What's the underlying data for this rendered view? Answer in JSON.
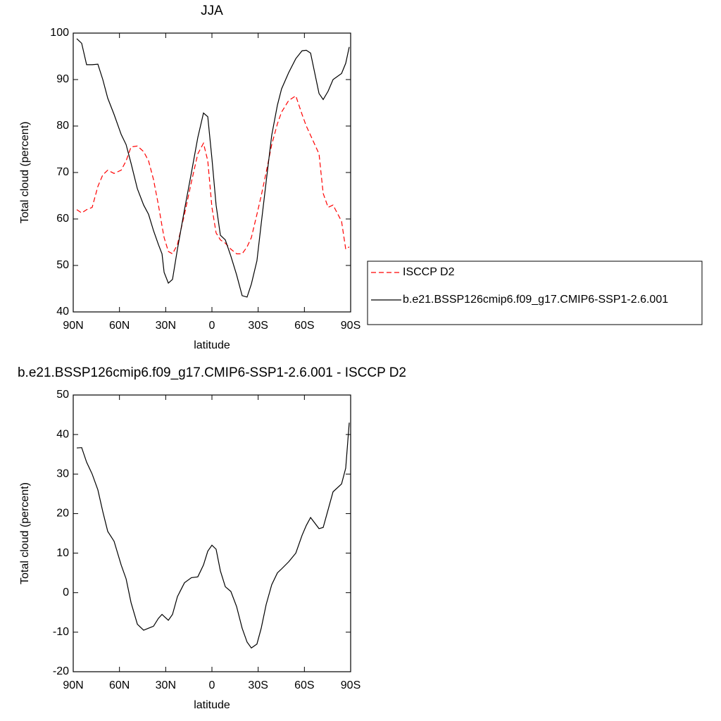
{
  "chart_data": [
    {
      "type": "line",
      "title": "JJA",
      "xlabel": "latitude",
      "ylabel": "Total cloud (percent)",
      "x": [
        87.7,
        84.5,
        81.3,
        77.7,
        74,
        70.8,
        67.6,
        63.5,
        58.9,
        55.7,
        52.5,
        48.4,
        44.3,
        41.1,
        37.9,
        34.7,
        32.4,
        31,
        28.3,
        25.6,
        22.4,
        17.8,
        13.3,
        9.2,
        5.5,
        2.7,
        0,
        -2.7,
        -5.5,
        -8.7,
        -12.3,
        -16,
        -19.6,
        -22.8,
        -25.6,
        -29.2,
        -32,
        -35.2,
        -38.8,
        -42.5,
        -45.2,
        -49.8,
        -54.4,
        -58.5,
        -61.2,
        -64,
        -69.5,
        -72.2,
        -75.4,
        -78.6,
        -84.1,
        -86.8,
        -89.1
      ],
      "series": [
        {
          "name": "ISCCP D2",
          "color": "#ff0000",
          "dashed": true,
          "values": [
            62,
            61.3,
            62,
            62.5,
            67,
            69.5,
            70.5,
            69.8,
            70.5,
            72.5,
            75.5,
            75.7,
            74.5,
            72.5,
            68.5,
            63,
            58.5,
            56,
            53,
            52.5,
            54.5,
            61,
            68,
            74,
            76.3,
            72.5,
            62.5,
            57,
            55.5,
            54.8,
            53.5,
            52.5,
            52.5,
            54,
            56,
            61,
            65,
            70,
            76,
            80.5,
            83,
            85.5,
            86.5,
            82.5,
            80,
            78,
            74,
            65.5,
            62.5,
            63,
            59.5,
            53.5,
            54
          ]
        },
        {
          "name": "b.e21.BSSP126cmip6.f09_g17.CMIP6-SSP1-2.6.001",
          "color": "#000000",
          "dashed": false,
          "values": [
            98.8,
            97.8,
            93.2,
            93.2,
            93.3,
            90,
            86,
            82.5,
            78.2,
            76,
            72,
            66.5,
            63,
            61,
            57.5,
            54.5,
            52.5,
            48.5,
            46.2,
            47,
            53.5,
            62,
            70,
            77.5,
            82.8,
            82,
            73,
            63,
            56.5,
            55.5,
            52,
            48,
            43.5,
            43.2,
            46,
            51,
            59,
            68,
            78,
            84.5,
            88,
            91.5,
            94.5,
            96.2,
            96.3,
            95.7,
            87,
            85.7,
            87.5,
            90,
            91.3,
            93.5,
            97
          ]
        }
      ],
      "xlim": [
        90,
        -90
      ],
      "xticks": [
        {
          "value": 90,
          "label": "90N"
        },
        {
          "value": 60,
          "label": "60N"
        },
        {
          "value": 30,
          "label": "30N"
        },
        0,
        {
          "value": -30,
          "label": "30S"
        },
        {
          "value": -60,
          "label": "60S"
        },
        {
          "value": -90,
          "label": "90S"
        }
      ],
      "ylim": [
        40,
        100
      ],
      "yticks": [
        40,
        50,
        60,
        70,
        80,
        90,
        100
      ],
      "legend": "right"
    },
    {
      "type": "line",
      "title": "b.e21.BSSP126cmip6.f09_g17.CMIP6-SSP1-2.6.001 - ISCCP D2",
      "xlabel": "latitude",
      "ylabel": "Total cloud (percent)",
      "x": [
        87.7,
        84.5,
        81.3,
        77.7,
        74,
        70.8,
        67.6,
        63.5,
        58.9,
        55.7,
        52.5,
        48.4,
        44.3,
        41.1,
        37.9,
        34.7,
        32.4,
        31,
        28.3,
        25.6,
        22.4,
        17.8,
        13.3,
        9.2,
        5.5,
        2.7,
        0,
        -2.7,
        -5.5,
        -8.7,
        -12.3,
        -16,
        -19.6,
        -22.8,
        -25.6,
        -29.2,
        -32,
        -35.2,
        -38.8,
        -42.5,
        -45.2,
        -49.8,
        -54.4,
        -58.5,
        -61.2,
        -64,
        -69.5,
        -72.2,
        -75.4,
        -78.6,
        -84.1,
        -86.8,
        -89.1
      ],
      "color": "#000000",
      "values": [
        36.6,
        36.7,
        33,
        30,
        26,
        20.5,
        15.5,
        13,
        7,
        3.5,
        -2.5,
        -8,
        -9.5,
        -9,
        -8.5,
        -6.5,
        -5.5,
        -6,
        -7,
        -5.5,
        -1,
        2.5,
        3.8,
        4,
        7,
        10.5,
        12,
        11,
        5.5,
        1.5,
        0.3,
        -3.5,
        -9,
        -12.5,
        -14,
        -13,
        -9,
        -3,
        2,
        5,
        6,
        7.8,
        10,
        14.5,
        17,
        19,
        16.2,
        16.5,
        21,
        25.5,
        27.5,
        31.5,
        43
      ],
      "xlim": [
        90,
        -90
      ],
      "xticks": [
        {
          "value": 90,
          "label": "90N"
        },
        {
          "value": 60,
          "label": "60N"
        },
        {
          "value": 30,
          "label": "30N"
        },
        0,
        {
          "value": -30,
          "label": "30S"
        },
        {
          "value": -60,
          "label": "60S"
        },
        {
          "value": -90,
          "label": "90S"
        }
      ],
      "ylim": [
        -20,
        50
      ],
      "yticks": [
        -20,
        -10,
        0,
        10,
        20,
        30,
        40,
        50
      ]
    }
  ]
}
